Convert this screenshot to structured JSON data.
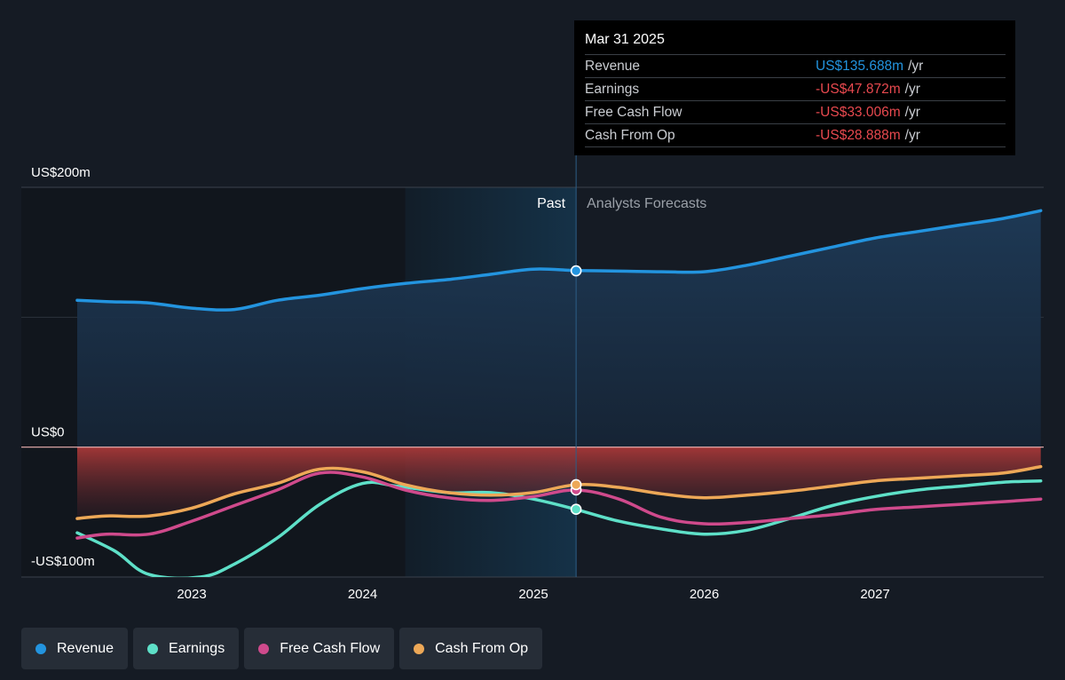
{
  "chart_data": {
    "type": "area",
    "y_unit_labels": {
      "top": "US$200m",
      "zero": "US$0",
      "bottom": "-US$100m"
    },
    "ylim": [
      -100,
      200
    ],
    "xlim": [
      2022.28,
      2027.97
    ],
    "x_ticks": [
      "2023",
      "2024",
      "2025",
      "2026",
      "2027"
    ],
    "x_tick_values": [
      2023,
      2024,
      2025,
      2026,
      2027
    ],
    "grid": true,
    "past_label": "Past",
    "forecast_label": "Analysts Forecasts",
    "present_x": 2025.25,
    "highlight_start_x": 2024.25,
    "legend_placement": "bottom",
    "colors": {
      "Revenue": "#2394df",
      "Earnings": "#5ee0c8",
      "Free Cash Flow": "#cf4a8c",
      "Cash From Op": "#eda857",
      "negative_fill": "#b33a3a",
      "background": "#151b24"
    },
    "series": [
      {
        "name": "Revenue",
        "x": [
          2022.33,
          2022.5,
          2022.75,
          2023.0,
          2023.25,
          2023.5,
          2023.75,
          2024.0,
          2024.25,
          2024.5,
          2024.75,
          2025.0,
          2025.25,
          2025.5,
          2025.75,
          2026.0,
          2026.25,
          2026.5,
          2026.75,
          2027.0,
          2027.25,
          2027.5,
          2027.75,
          2027.97
        ],
        "y": [
          113,
          112,
          111,
          107,
          106,
          113,
          117,
          122,
          126,
          129,
          133,
          137,
          136,
          135.5,
          135,
          135,
          140,
          147,
          154,
          161,
          166,
          171,
          176,
          182
        ]
      },
      {
        "name": "Earnings",
        "x": [
          2022.33,
          2022.55,
          2022.75,
          2023.05,
          2023.25,
          2023.5,
          2023.75,
          2024.0,
          2024.2,
          2024.5,
          2024.75,
          2025.0,
          2025.25,
          2025.5,
          2025.75,
          2026.0,
          2026.25,
          2026.5,
          2026.75,
          2027.0,
          2027.25,
          2027.5,
          2027.75,
          2027.97
        ],
        "y": [
          -66,
          -80,
          -98,
          -100,
          -90,
          -70,
          -44,
          -28,
          -30,
          -35,
          -35,
          -40,
          -48,
          -57,
          -63,
          -67,
          -64,
          -55,
          -45,
          -38,
          -33,
          -30,
          -27,
          -26
        ]
      },
      {
        "name": "Free Cash Flow",
        "x": [
          2022.33,
          2022.5,
          2022.75,
          2023.0,
          2023.25,
          2023.5,
          2023.75,
          2024.0,
          2024.25,
          2024.5,
          2024.75,
          2025.0,
          2025.25,
          2025.5,
          2025.75,
          2026.0,
          2026.25,
          2026.5,
          2026.75,
          2027.0,
          2027.25,
          2027.5,
          2027.75,
          2027.97
        ],
        "y": [
          -70,
          -67,
          -67,
          -57,
          -45,
          -33,
          -20,
          -23,
          -33,
          -39,
          -41,
          -38,
          -33,
          -40,
          -54,
          -59,
          -58,
          -55,
          -52,
          -48,
          -46,
          -44,
          -42,
          -40
        ]
      },
      {
        "name": "Cash From Op",
        "x": [
          2022.33,
          2022.5,
          2022.75,
          2023.0,
          2023.25,
          2023.5,
          2023.75,
          2024.0,
          2024.25,
          2024.5,
          2024.75,
          2025.0,
          2025.25,
          2025.5,
          2025.75,
          2026.0,
          2026.25,
          2026.5,
          2026.75,
          2027.0,
          2027.25,
          2027.5,
          2027.75,
          2027.97
        ],
        "y": [
          -55,
          -53,
          -53,
          -47,
          -36,
          -28,
          -17,
          -19,
          -29,
          -35,
          -37,
          -35,
          -29,
          -31,
          -36,
          -39,
          -37,
          -34,
          -30,
          -26,
          -24,
          -22,
          -20,
          -15
        ]
      }
    ],
    "tooltip": {
      "date": "Mar 31 2025",
      "rows": [
        {
          "name": "Revenue",
          "value": "US$135.688m",
          "unit": "/yr",
          "color": "#2394df"
        },
        {
          "name": "Earnings",
          "value": "-US$47.872m",
          "unit": "/yr",
          "color": "#e8494f"
        },
        {
          "name": "Free Cash Flow",
          "value": "-US$33.006m",
          "unit": "/yr",
          "color": "#e8494f"
        },
        {
          "name": "Cash From Op",
          "value": "-US$28.888m",
          "unit": "/yr",
          "color": "#e8494f"
        }
      ]
    }
  },
  "legend": [
    {
      "label": "Revenue",
      "color": "#2394df"
    },
    {
      "label": "Earnings",
      "color": "#5ee0c8"
    },
    {
      "label": "Free Cash Flow",
      "color": "#cf4a8c"
    },
    {
      "label": "Cash From Op",
      "color": "#eda857"
    }
  ]
}
